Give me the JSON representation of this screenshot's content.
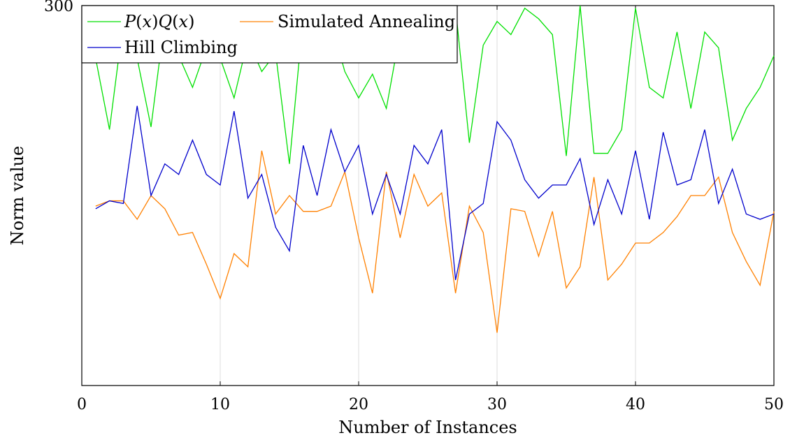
{
  "chart_data": {
    "type": "line",
    "title": "",
    "xlabel": "Number of Instances",
    "ylabel": "Norm value",
    "xlim": [
      0,
      50
    ],
    "ylim": [
      228,
      300
    ],
    "x_ticks": [
      0,
      10,
      20,
      30,
      40,
      50
    ],
    "y_ticks": [
      300
    ],
    "grid": true,
    "legend_position": "top-left",
    "x": [
      1,
      2,
      3,
      4,
      5,
      6,
      7,
      8,
      9,
      10,
      11,
      12,
      13,
      14,
      15,
      16,
      17,
      18,
      19,
      20,
      21,
      22,
      23,
      24,
      25,
      26,
      27,
      28,
      29,
      30,
      31,
      32,
      33,
      34,
      35,
      36,
      37,
      38,
      39,
      40,
      41,
      42,
      43,
      44,
      45,
      46,
      47,
      48,
      49,
      50
    ],
    "series": [
      {
        "name": "P(x)Q(x)",
        "color": "#00e000",
        "values": [
          290.0,
          276.5,
          297.0,
          290.0,
          277.0,
          297.5,
          290.5,
          284.5,
          292.0,
          290.0,
          282.5,
          293.5,
          287.5,
          291.0,
          270.0,
          298.0,
          295.0,
          297.0,
          287.5,
          282.5,
          287.0,
          280.5,
          295.0,
          299.5,
          294.5,
          297.0,
          299.5,
          274.0,
          292.5,
          297.0,
          294.5,
          299.5,
          297.5,
          294.5,
          271.5,
          300.0,
          272.0,
          272.0,
          276.5,
          299.5,
          284.5,
          282.5,
          295.0,
          280.5,
          295.0,
          292.0,
          274.5,
          280.5,
          284.5,
          290.5
        ]
      },
      {
        "name": "Simulated Annealing",
        "color": "#ff8000",
        "values": [
          262.0,
          263.0,
          263.0,
          259.5,
          264.0,
          261.5,
          256.5,
          257.0,
          251.0,
          244.5,
          253.0,
          250.5,
          272.5,
          260.5,
          264.0,
          261.0,
          261.0,
          262.0,
          268.5,
          256.0,
          245.5,
          268.5,
          256.0,
          268.0,
          262.0,
          264.5,
          245.5,
          262.0,
          257.0,
          238.0,
          261.5,
          261.0,
          252.5,
          261.0,
          246.5,
          250.5,
          267.5,
          248.0,
          251.0,
          255.0,
          255.0,
          257.0,
          260.0,
          264.0,
          264.0,
          267.5,
          257.0,
          251.5,
          247.0,
          261.0
        ]
      },
      {
        "name": "Hill Climbing",
        "color": "#0000cc",
        "values": [
          261.5,
          263.0,
          262.5,
          281.0,
          264.0,
          270.0,
          268.0,
          274.5,
          268.0,
          266.0,
          280.0,
          263.5,
          268.0,
          258.0,
          253.5,
          273.5,
          264.0,
          276.5,
          268.5,
          273.5,
          260.5,
          268.0,
          260.5,
          273.5,
          270.0,
          276.5,
          248.0,
          260.5,
          262.5,
          278.0,
          274.5,
          267.0,
          263.5,
          266.0,
          266.0,
          271.0,
          258.5,
          267.0,
          260.5,
          272.5,
          259.5,
          276.0,
          266.0,
          267.0,
          276.5,
          262.5,
          269.0,
          260.5,
          259.5,
          260.5
        ]
      }
    ]
  },
  "legend": {
    "entry_1_prefix": "P",
    "entry_1_x1": "x",
    "entry_1_mid": "Q",
    "entry_1_x2": "x",
    "entry_2": "Simulated Annealing",
    "entry_3": "Hill Climbing"
  },
  "tick_labels": {
    "x": [
      "0",
      "10",
      "20",
      "30",
      "40",
      "50"
    ],
    "y": [
      "300"
    ]
  }
}
